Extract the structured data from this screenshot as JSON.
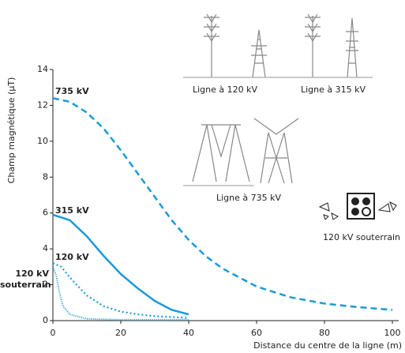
{
  "chart_data": {
    "type": "line",
    "xlabel": "Distance du centre de la ligne (m)",
    "ylabel": "Champ magnétique (µT)",
    "xlim": [
      0,
      100
    ],
    "xticks": [
      0,
      20,
      40,
      60,
      80,
      100
    ],
    "ylim": [
      0,
      14
    ],
    "yticks": [
      0,
      2,
      4,
      6,
      8,
      10,
      12,
      14
    ],
    "series": [
      {
        "name": "735 kV",
        "color": "#1b9ad6",
        "style": "dashed",
        "x": [
          0,
          5,
          10,
          15,
          20,
          25,
          30,
          35,
          40,
          45,
          50,
          60,
          70,
          80,
          90,
          100
        ],
        "values": [
          12.4,
          12.2,
          11.6,
          10.7,
          9.5,
          8.2,
          6.9,
          5.6,
          4.5,
          3.6,
          2.9,
          1.9,
          1.3,
          0.95,
          0.75,
          0.6
        ]
      },
      {
        "name": "315 kV",
        "color": "#1b9ad6",
        "style": "solid",
        "x": [
          0,
          5,
          10,
          15,
          20,
          25,
          30,
          35,
          40
        ],
        "values": [
          5.9,
          5.6,
          4.7,
          3.6,
          2.6,
          1.8,
          1.1,
          0.6,
          0.35
        ]
      },
      {
        "name": "120 kV",
        "color": "#1b9ad6",
        "style": "dotted",
        "x": [
          0,
          2.5,
          5,
          10,
          15,
          20,
          25,
          30,
          40
        ],
        "values": [
          3.2,
          3.0,
          2.4,
          1.4,
          0.8,
          0.5,
          0.35,
          0.25,
          0.15
        ]
      },
      {
        "name": "120 kV souterrain",
        "color": "#1b9ad6",
        "style": "fine-dotted",
        "x": [
          0,
          1,
          2,
          3,
          5,
          10,
          20,
          40
        ],
        "values": [
          3.0,
          2.5,
          1.5,
          0.8,
          0.35,
          0.1,
          0.05,
          0.05
        ]
      }
    ]
  },
  "illustrations": [
    "Ligne à 120 kV",
    "Ligne à 315 kV",
    "Ligne à 735 kV",
    "120 kV souterrain"
  ]
}
